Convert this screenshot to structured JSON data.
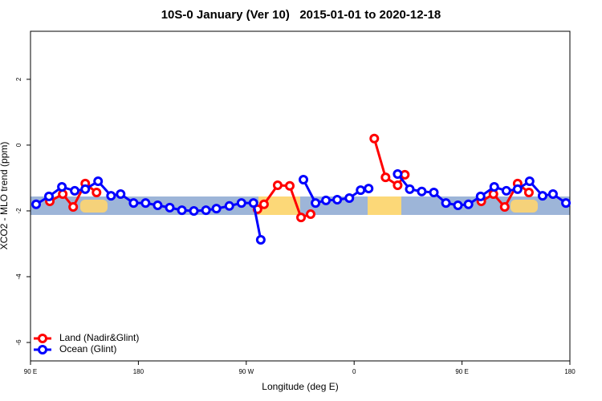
{
  "chart_data": {
    "type": "line",
    "title": "10S-0 January (Ver 10)   2015-01-01 to 2020-12-18",
    "x_label": "Longitude (deg E)",
    "y_label": "XCO2 - MLO trend (ppm)",
    "xlim": [
      90,
      540
    ],
    "ylim": [
      -6.56,
      3.46
    ],
    "xticks": [
      {
        "value": 90,
        "label": "90 E"
      },
      180,
      {
        "value": 270,
        "label": "90 W"
      },
      {
        "value": 360,
        "label": "0"
      },
      {
        "value": 450,
        "label": "90 E"
      },
      {
        "value": 540,
        "label": "180"
      }
    ],
    "yticks": [
      -6,
      -4,
      -2,
      0,
      2
    ],
    "legend": "bottom-left",
    "series": [
      {
        "name": "Land (Nadir&Glint)",
        "color": "#ff0000",
        "x": [
          106.1,
          116.9,
          125.6,
          135.7,
          145.1,
          null,
          279.4,
          284.8,
          296.2,
          306.3,
          315.7,
          323.7,
          null,
          376.8,
          386.2,
          396.3,
          402.3,
          null,
          466.1,
          476.2,
          485.6,
          496.4,
          505.8
        ],
        "values": [
          -1.71,
          -1.49,
          -1.88,
          -1.17,
          -1.44,
          null,
          -1.95,
          -1.8,
          -1.22,
          -1.24,
          -2.2,
          -2.1,
          null,
          0.2,
          -0.98,
          -1.22,
          -0.9,
          null,
          -1.71,
          -1.49,
          -1.88,
          -1.17,
          -1.44
        ]
      },
      {
        "name": "Ocean (Glint)",
        "color": "#0000ff",
        "x": [
          94.7,
          105.4,
          116.2,
          126.9,
          135.7,
          146.4,
          157.2,
          165.2,
          176.0,
          186.0,
          196.1,
          206.2,
          216.3,
          226.3,
          236.4,
          245.1,
          255.9,
          266.0,
          276.0,
          282.1,
          null,
          317.7,
          327.8,
          336.5,
          345.9,
          356.0,
          365.4,
          372.1,
          null,
          396.3,
          406.4,
          416.4,
          426.5,
          436.6,
          446.6,
          455.4,
          465.5,
          476.9,
          487.0,
          496.4,
          506.4,
          517.2,
          525.9,
          536.7
        ],
        "values": [
          -1.8,
          -1.56,
          -1.27,
          -1.39,
          -1.34,
          -1.1,
          -1.54,
          -1.49,
          -1.76,
          -1.76,
          -1.83,
          -1.9,
          -1.98,
          -2.0,
          -1.98,
          -1.93,
          -1.85,
          -1.76,
          -1.76,
          -2.88,
          null,
          -1.05,
          -1.76,
          -1.68,
          -1.66,
          -1.61,
          -1.37,
          -1.32,
          null,
          -0.88,
          -1.34,
          -1.41,
          -1.44,
          -1.76,
          -1.83,
          -1.8,
          -1.56,
          -1.27,
          -1.39,
          -1.34,
          -1.1,
          -1.54,
          -1.49,
          -1.76
        ]
      }
    ]
  }
}
